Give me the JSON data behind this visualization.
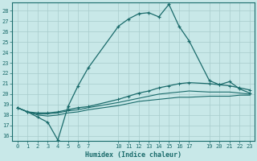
{
  "xlabel": "Humidex (Indice chaleur)",
  "bg_color": "#c8e8e8",
  "grid_color": "#b0d0d0",
  "line_color": "#1a6b6b",
  "xlim": [
    -0.5,
    23.5
  ],
  "ylim": [
    15.5,
    28.8
  ],
  "xticks": [
    0,
    1,
    2,
    3,
    4,
    5,
    6,
    7,
    10,
    11,
    12,
    13,
    14,
    15,
    16,
    17,
    19,
    20,
    21,
    22,
    23
  ],
  "yticks": [
    16,
    17,
    18,
    19,
    20,
    21,
    22,
    23,
    24,
    25,
    26,
    27,
    28
  ],
  "line1_x": [
    0,
    1,
    2,
    3,
    4,
    5,
    6,
    7,
    10,
    11,
    12,
    13,
    14,
    15,
    16,
    17,
    19,
    20,
    21,
    22,
    23
  ],
  "line1_y": [
    18.7,
    18.3,
    17.8,
    17.3,
    15.6,
    18.8,
    20.8,
    22.5,
    26.5,
    27.2,
    27.7,
    27.8,
    27.4,
    28.6,
    26.5,
    25.1,
    21.3,
    20.9,
    21.2,
    20.5,
    20.1
  ],
  "line2_x": [
    0,
    1,
    2,
    3,
    4,
    5,
    6,
    7,
    10,
    11,
    12,
    13,
    14,
    15,
    16,
    17,
    19,
    20,
    21,
    22,
    23
  ],
  "line2_y": [
    18.7,
    18.3,
    18.2,
    18.2,
    18.3,
    18.5,
    18.7,
    18.8,
    19.5,
    19.8,
    20.1,
    20.3,
    20.6,
    20.8,
    21.0,
    21.1,
    21.0,
    20.9,
    20.8,
    20.6,
    20.4
  ],
  "line3_x": [
    0,
    1,
    2,
    3,
    4,
    5,
    6,
    7,
    10,
    11,
    12,
    13,
    14,
    15,
    16,
    17,
    19,
    20,
    21,
    22,
    23
  ],
  "line3_y": [
    18.7,
    18.3,
    18.1,
    18.1,
    18.2,
    18.4,
    18.5,
    18.7,
    19.2,
    19.4,
    19.6,
    19.8,
    20.0,
    20.1,
    20.2,
    20.3,
    20.2,
    20.2,
    20.2,
    20.1,
    20.0
  ],
  "line4_x": [
    0,
    1,
    2,
    3,
    4,
    5,
    6,
    7,
    10,
    11,
    12,
    13,
    14,
    15,
    16,
    17,
    19,
    20,
    21,
    22,
    23
  ],
  "line4_y": [
    18.7,
    18.3,
    18.0,
    17.9,
    18.0,
    18.2,
    18.3,
    18.5,
    18.9,
    19.1,
    19.3,
    19.4,
    19.5,
    19.6,
    19.7,
    19.7,
    19.8,
    19.8,
    19.8,
    19.9,
    19.9
  ]
}
